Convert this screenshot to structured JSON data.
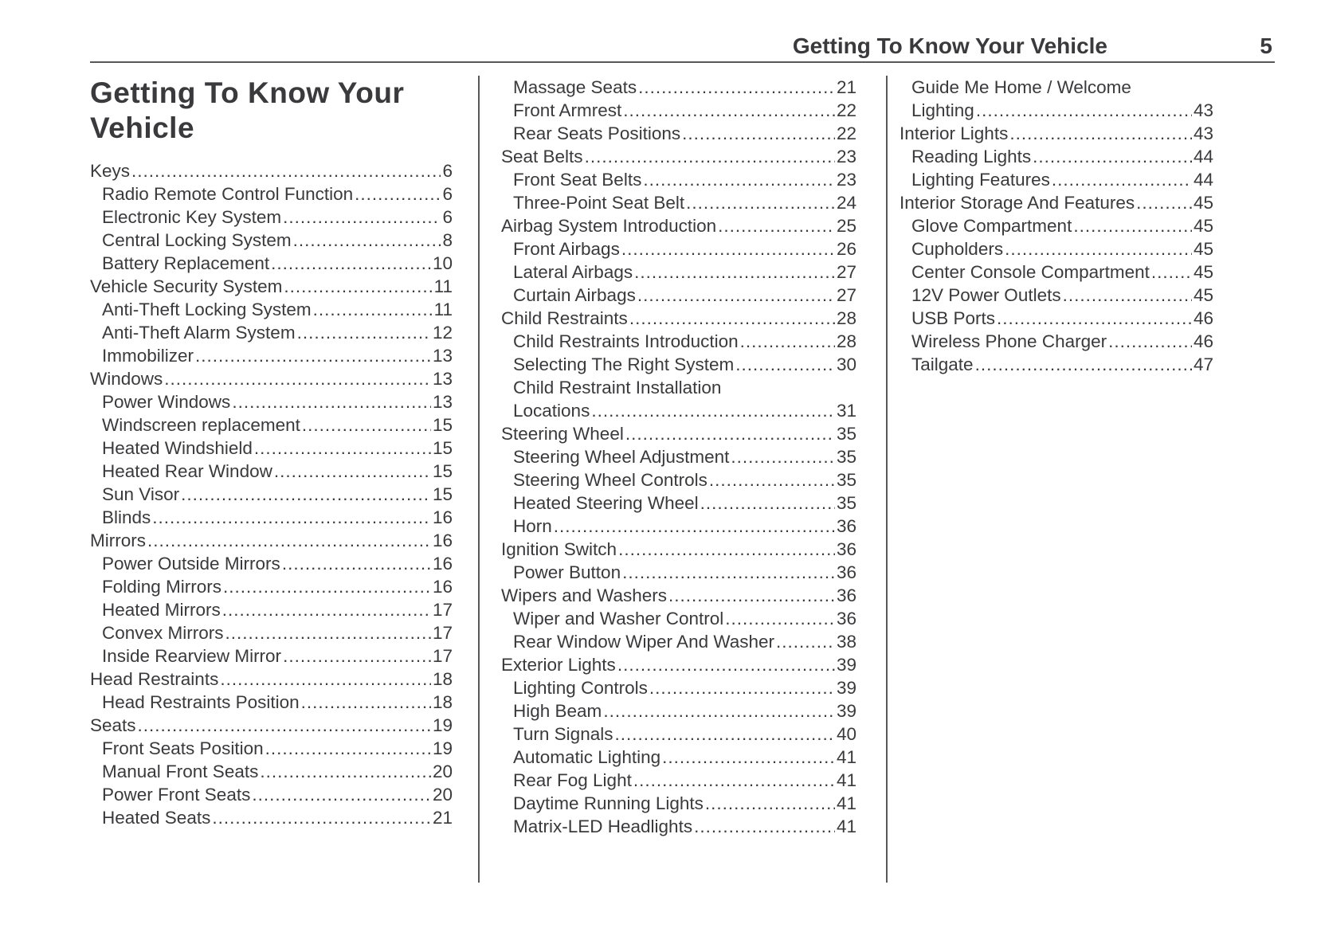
{
  "page": {
    "header": {
      "chapter_title": "Getting To Know Your Vehicle",
      "page_number": "5"
    },
    "section_title": "Getting To Know Your Vehicle",
    "columns": [
      {
        "entries": [
          {
            "label": "Keys",
            "page": "6",
            "level": 0
          },
          {
            "label": "Radio Remote Control Function",
            "page": "6",
            "level": 1
          },
          {
            "label": "Electronic Key System",
            "page": "6",
            "level": 1
          },
          {
            "label": "Central Locking System",
            "page": "8",
            "level": 1
          },
          {
            "label": "Battery Replacement",
            "page": "10",
            "level": 1
          },
          {
            "label": "Vehicle Security System",
            "page": "11",
            "level": 0
          },
          {
            "label": "Anti-Theft Locking System",
            "page": "11",
            "level": 1
          },
          {
            "label": "Anti-Theft Alarm System",
            "page": "12",
            "level": 1
          },
          {
            "label": "Immobilizer",
            "page": "13",
            "level": 1
          },
          {
            "label": "Windows",
            "page": "13",
            "level": 0
          },
          {
            "label": "Power Windows",
            "page": "13",
            "level": 1
          },
          {
            "label": "Windscreen replacement",
            "page": "15",
            "level": 1
          },
          {
            "label": "Heated Windshield",
            "page": "15",
            "level": 1
          },
          {
            "label": "Heated Rear Window",
            "page": "15",
            "level": 1
          },
          {
            "label": "Sun Visor",
            "page": "15",
            "level": 1
          },
          {
            "label": "Blinds",
            "page": "16",
            "level": 1
          },
          {
            "label": "Mirrors",
            "page": "16",
            "level": 0
          },
          {
            "label": "Power Outside Mirrors",
            "page": "16",
            "level": 1
          },
          {
            "label": "Folding Mirrors",
            "page": "16",
            "level": 1
          },
          {
            "label": "Heated Mirrors",
            "page": "17",
            "level": 1
          },
          {
            "label": "Convex Mirrors",
            "page": "17",
            "level": 1
          },
          {
            "label": "Inside Rearview Mirror",
            "page": "17",
            "level": 1
          },
          {
            "label": "Head Restraints",
            "page": "18",
            "level": 0
          },
          {
            "label": "Head Restraints Position",
            "page": "18",
            "level": 1
          },
          {
            "label": "Seats",
            "page": "19",
            "level": 0
          },
          {
            "label": "Front Seats Position",
            "page": "19",
            "level": 1
          },
          {
            "label": "Manual Front Seats",
            "page": "20",
            "level": 1
          },
          {
            "label": "Power Front Seats",
            "page": "20",
            "level": 1
          },
          {
            "label": "Heated Seats",
            "page": "21",
            "level": 1
          }
        ]
      },
      {
        "entries": [
          {
            "label": "Massage Seats",
            "page": "21",
            "level": 1
          },
          {
            "label": "Front Armrest",
            "page": "22",
            "level": 1
          },
          {
            "label": "Rear Seats Positions",
            "page": "22",
            "level": 1
          },
          {
            "label": "Seat Belts",
            "page": "23",
            "level": 0
          },
          {
            "label": "Front Seat Belts",
            "page": "23",
            "level": 1
          },
          {
            "label": "Three-Point Seat Belt",
            "page": "24",
            "level": 1
          },
          {
            "label": "Airbag System Introduction",
            "page": "25",
            "level": 0
          },
          {
            "label": "Front Airbags",
            "page": "26",
            "level": 1
          },
          {
            "label": "Lateral Airbags",
            "page": "27",
            "level": 1
          },
          {
            "label": "Curtain Airbags",
            "page": "27",
            "level": 1
          },
          {
            "label": "Child Restraints",
            "page": "28",
            "level": 0
          },
          {
            "label": "Child Restraints Introduction",
            "page": "28",
            "level": 1
          },
          {
            "label": "Selecting The Right System",
            "page": "30",
            "level": 1
          },
          {
            "label": "Child Restraint Installation",
            "page": "",
            "level": 1
          },
          {
            "label": "Locations",
            "page": "31",
            "level": 1
          },
          {
            "label": "Steering Wheel",
            "page": "35",
            "level": 0
          },
          {
            "label": "Steering Wheel Adjustment",
            "page": "35",
            "level": 1
          },
          {
            "label": "Steering Wheel Controls",
            "page": "35",
            "level": 1
          },
          {
            "label": "Heated Steering Wheel",
            "page": "35",
            "level": 1
          },
          {
            "label": "Horn",
            "page": "36",
            "level": 1
          },
          {
            "label": "Ignition Switch",
            "page": "36",
            "level": 0
          },
          {
            "label": "Power Button",
            "page": "36",
            "level": 1
          },
          {
            "label": "Wipers and Washers",
            "page": "36",
            "level": 0
          },
          {
            "label": "Wiper and Washer Control",
            "page": "36",
            "level": 1
          },
          {
            "label": "Rear Window Wiper And Washer",
            "page": "38",
            "level": 1
          },
          {
            "label": "Exterior Lights",
            "page": "39",
            "level": 0
          },
          {
            "label": "Lighting Controls",
            "page": "39",
            "level": 1
          },
          {
            "label": "High Beam",
            "page": "39",
            "level": 1
          },
          {
            "label": "Turn Signals",
            "page": "40",
            "level": 1
          },
          {
            "label": "Automatic Lighting",
            "page": "41",
            "level": 1
          },
          {
            "label": "Rear Fog Light",
            "page": "41",
            "level": 1
          },
          {
            "label": "Daytime Running Lights",
            "page": "41",
            "level": 1
          },
          {
            "label": "Matrix-LED Headlights",
            "page": "41",
            "level": 1
          }
        ]
      },
      {
        "entries": [
          {
            "label": "Guide Me Home / Welcome",
            "page": "",
            "level": 1
          },
          {
            "label": "Lighting",
            "page": "43",
            "level": 1
          },
          {
            "label": "Interior Lights",
            "page": "43",
            "level": 0
          },
          {
            "label": "Reading Lights",
            "page": "44",
            "level": 1
          },
          {
            "label": "Lighting Features",
            "page": "44",
            "level": 1
          },
          {
            "label": "Interior Storage And Features",
            "page": "45",
            "level": 0
          },
          {
            "label": "Glove Compartment",
            "page": "45",
            "level": 1
          },
          {
            "label": "Cupholders",
            "page": "45",
            "level": 1
          },
          {
            "label": "Center Console Compartment",
            "page": "45",
            "level": 1
          },
          {
            "label": "12V Power Outlets",
            "page": "45",
            "level": 1
          },
          {
            "label": "USB Ports",
            "page": "46",
            "level": 1
          },
          {
            "label": "Wireless Phone Charger",
            "page": "46",
            "level": 1
          },
          {
            "label": "Tailgate",
            "page": "47",
            "level": 1
          }
        ]
      }
    ]
  },
  "colors": {
    "text": "#3a3a3c",
    "rule": "#58585a",
    "background": "#ffffff"
  }
}
